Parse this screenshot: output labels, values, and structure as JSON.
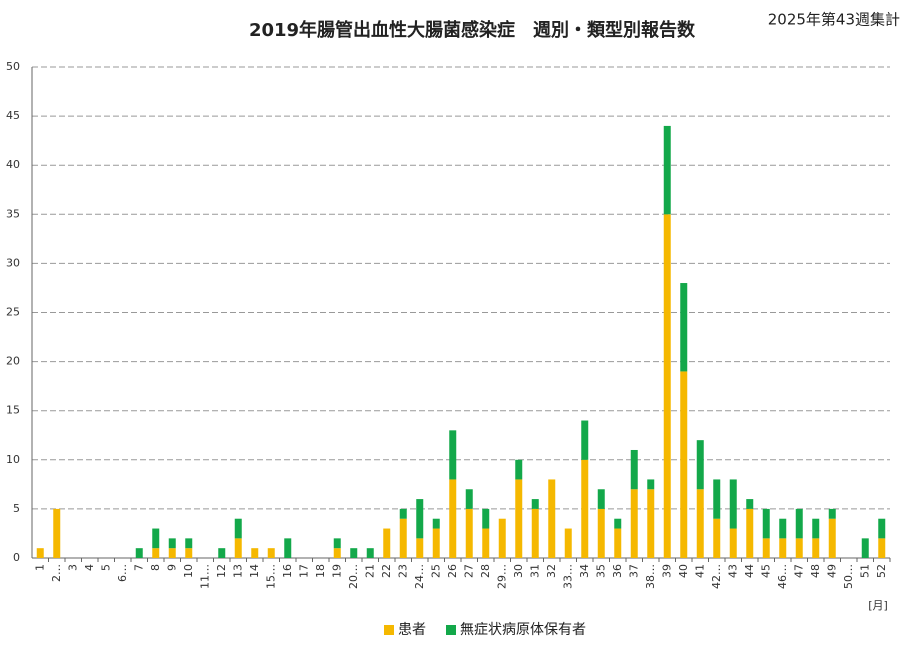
{
  "chart_data": {
    "type": "bar",
    "stacked": true,
    "title": "2019年腸管出血性大腸菌感染症　週別・類型別報告数",
    "subtitle": "2025年第43週集計",
    "x_label": "[月]",
    "categories": [
      "1",
      "2…",
      "3",
      "4",
      "5",
      "6…",
      "7",
      "8",
      "9",
      "10",
      "11…",
      "12",
      "13",
      "14",
      "15…",
      "16",
      "17",
      "18",
      "19",
      "20…",
      "21",
      "22",
      "23",
      "24…",
      "25",
      "26",
      "27",
      "28",
      "29…",
      "30",
      "31",
      "32",
      "33…",
      "34",
      "35",
      "36",
      "37",
      "38…",
      "39",
      "40",
      "41",
      "42…",
      "43",
      "44",
      "45",
      "46…",
      "47",
      "48",
      "49",
      "50…",
      "51",
      "52"
    ],
    "series": [
      {
        "name": "患者",
        "color": "#f5b800",
        "values": [
          1,
          5,
          0,
          0,
          0,
          0,
          0,
          1,
          1,
          1,
          0,
          0,
          2,
          1,
          1,
          0,
          0,
          0,
          1,
          0,
          0,
          3,
          4,
          2,
          3,
          8,
          5,
          3,
          4,
          8,
          5,
          8,
          3,
          10,
          5,
          3,
          7,
          7,
          35,
          19,
          7,
          4,
          3,
          5,
          2,
          2,
          2,
          2,
          4,
          0,
          0,
          2
        ]
      },
      {
        "name": "無症状病原体保有者",
        "color": "#13a84a",
        "values": [
          0,
          0,
          0,
          0,
          0,
          0,
          1,
          2,
          1,
          1,
          0,
          1,
          2,
          0,
          0,
          2,
          0,
          0,
          1,
          1,
          1,
          0,
          1,
          4,
          1,
          5,
          2,
          2,
          0,
          2,
          1,
          0,
          0,
          4,
          2,
          1,
          4,
          1,
          9,
          9,
          5,
          4,
          5,
          1,
          3,
          2,
          3,
          2,
          1,
          0,
          2,
          2
        ]
      }
    ],
    "ylim": [
      0,
      50
    ],
    "yticks": [
      0,
      5,
      10,
      15,
      20,
      25,
      30,
      35,
      40,
      45,
      50
    ],
    "grid": true
  }
}
